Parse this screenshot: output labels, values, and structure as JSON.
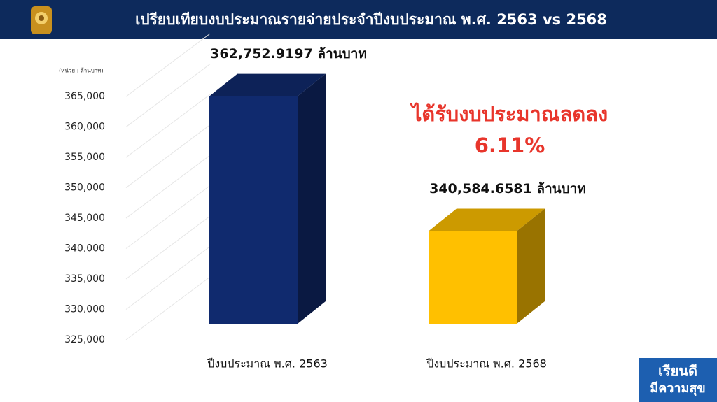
{
  "header": {
    "title": "เปรียบเทียบงบประมาณรายจ่ายประจำปีงบประมาณ พ.ศ. 2563 vs 2568"
  },
  "chart_data": {
    "type": "bar3d",
    "unit_label": "(หน่วย : ล้านบาท)",
    "categories": [
      "ปีงบประมาณ พ.ศ. 2563",
      "ปีงบประมาณ พ.ศ. 2568"
    ],
    "values": [
      362752.9197,
      340584.6581
    ],
    "value_labels": [
      "362,752.9197 ล้านบาท",
      "340,584.6581 ล้านบาท"
    ],
    "colors": [
      "#102a6e",
      "#ffc000"
    ],
    "annotation": [
      "ได้รับงบประมาณลดลง",
      "6.11%"
    ],
    "ylim": [
      325000,
      370000
    ],
    "yticks": [
      {
        "value": 325000,
        "label": "325,000"
      },
      {
        "value": 330000,
        "label": "330,000"
      },
      {
        "value": 335000,
        "label": "335,000"
      },
      {
        "value": 340000,
        "label": "340,000"
      },
      {
        "value": 345000,
        "label": "345,000"
      },
      {
        "value": 350000,
        "label": "350,000"
      },
      {
        "value": 355000,
        "label": "355,000"
      },
      {
        "value": 360000,
        "label": "360,000"
      },
      {
        "value": 365000,
        "label": "365,000"
      }
    ],
    "grid": true
  },
  "logo": {
    "line1": "เรียนดี",
    "line2": "มีความสุข"
  }
}
